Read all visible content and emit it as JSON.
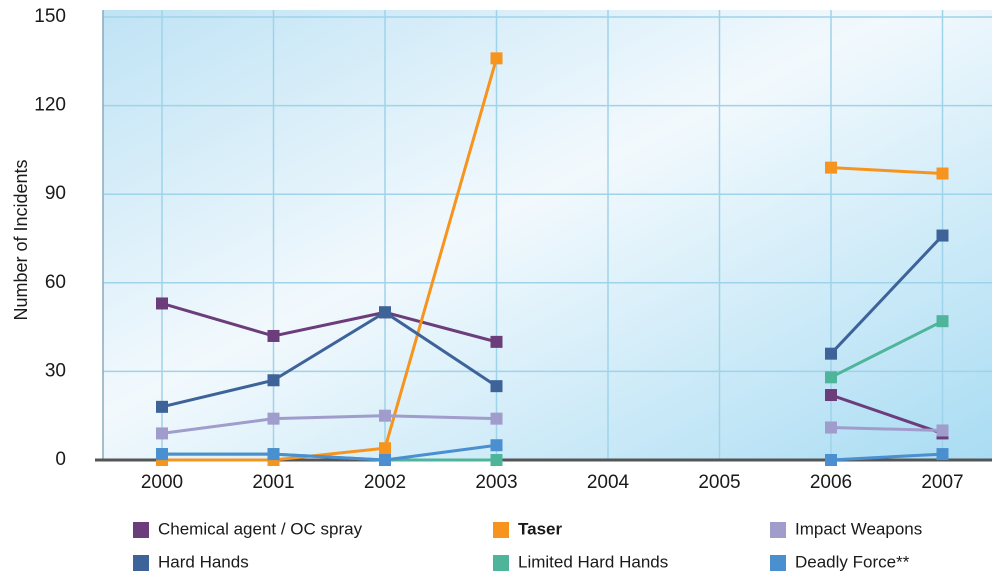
{
  "chart_data": {
    "type": "line",
    "y_label": "Number of Incidents",
    "categories": [
      "2000",
      "2001",
      "2002",
      "2003",
      "2004",
      "2005",
      "2006",
      "2007"
    ],
    "ylim": [
      0,
      150
    ],
    "yticks": [
      0,
      30,
      60,
      90,
      120,
      150
    ],
    "grid": true,
    "series": [
      {
        "name": "Chemical agent / OC spray",
        "color": "#6b3d7a",
        "values": [
          53,
          42,
          50,
          40,
          null,
          null,
          22,
          9
        ]
      },
      {
        "name": "Taser",
        "color": "#f7941d",
        "bold": true,
        "values": [
          0,
          0,
          4,
          136,
          null,
          null,
          99,
          97
        ]
      },
      {
        "name": "Impact Weapons",
        "color": "#a09ccc",
        "values": [
          9,
          14,
          15,
          14,
          null,
          null,
          11,
          10
        ]
      },
      {
        "name": "Hard Hands",
        "color": "#3d6399",
        "values": [
          18,
          27,
          50,
          25,
          null,
          null,
          36,
          76
        ]
      },
      {
        "name": "Limited Hard Hands",
        "color": "#4fb59a",
        "values": [
          2,
          2,
          0,
          0,
          null,
          null,
          28,
          47
        ]
      },
      {
        "name": "Deadly Force**",
        "color": "#4a8fd0",
        "values": [
          2,
          2,
          0,
          5,
          null,
          null,
          0,
          2
        ]
      }
    ]
  }
}
